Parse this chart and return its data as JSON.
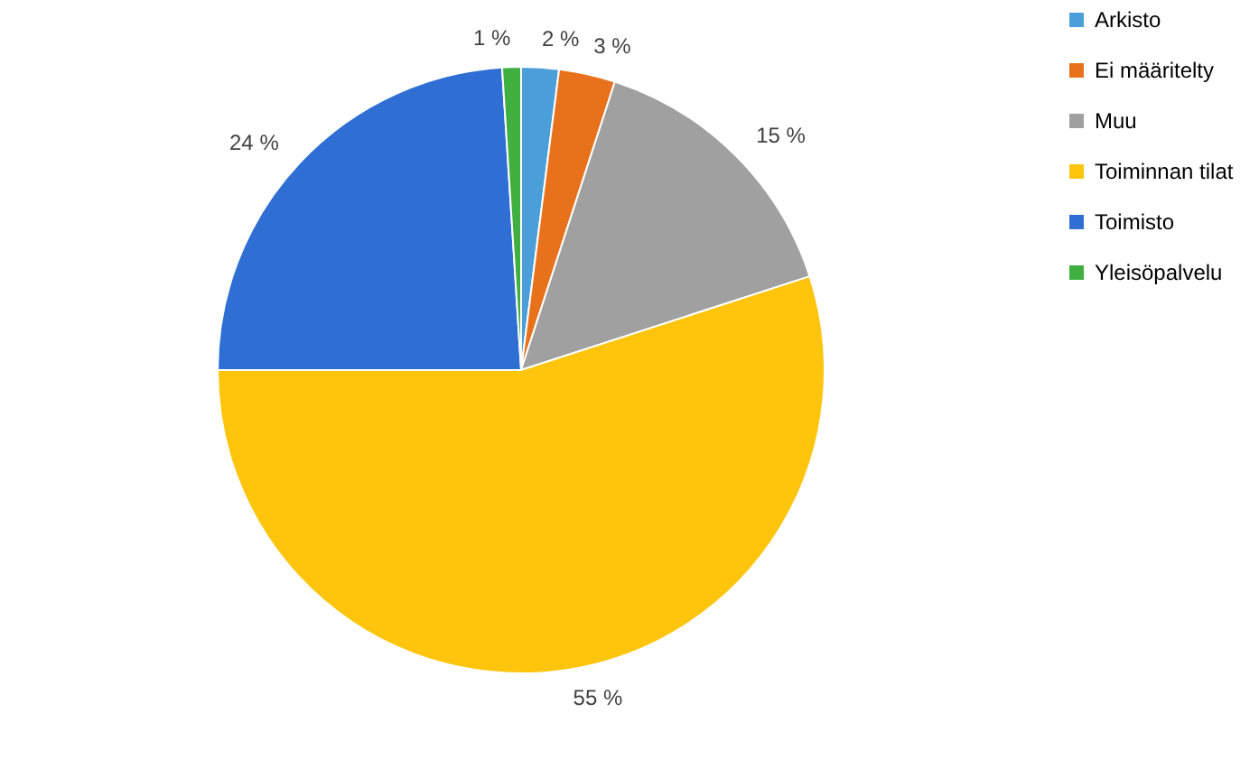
{
  "chart_data": {
    "type": "pie",
    "categories": [
      "Arkisto",
      "Ei määritelty",
      "Muu",
      "Toiminnan tilat",
      "Toimisto",
      "Yleisöpalvelu"
    ],
    "values": [
      2,
      3,
      15,
      55,
      24,
      1
    ],
    "colors": [
      "#4a9fd8",
      "#e8711c",
      "#a0a0a0",
      "#ffc40c",
      "#2f6fd4",
      "#3faf3f"
    ],
    "value_labels": [
      "2 %",
      "3 %",
      "15 %",
      "55 %",
      "24 %",
      "1 %"
    ],
    "legend": "right"
  }
}
